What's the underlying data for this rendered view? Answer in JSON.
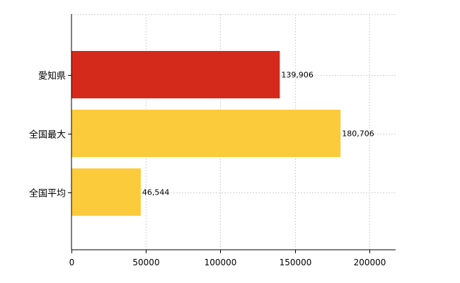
{
  "chart_data": {
    "type": "bar",
    "orientation": "horizontal",
    "categories": [
      "愛知県",
      "全国最大",
      "全国平均"
    ],
    "values": [
      139906,
      180706,
      46544
    ],
    "data_labels": [
      "139,906",
      "180,706",
      "46,544"
    ],
    "bar_colors": [
      "#d42a1c",
      "#fccb3c",
      "#fccb3c"
    ],
    "xlim": [
      0,
      220000
    ],
    "x_ticks": [
      0,
      50000,
      100000,
      150000,
      200000
    ],
    "x_tick_labels": [
      "0",
      "50000",
      "100000",
      "150000",
      "200000"
    ],
    "grid": true,
    "title": "",
    "xlabel": "",
    "ylabel": ""
  }
}
